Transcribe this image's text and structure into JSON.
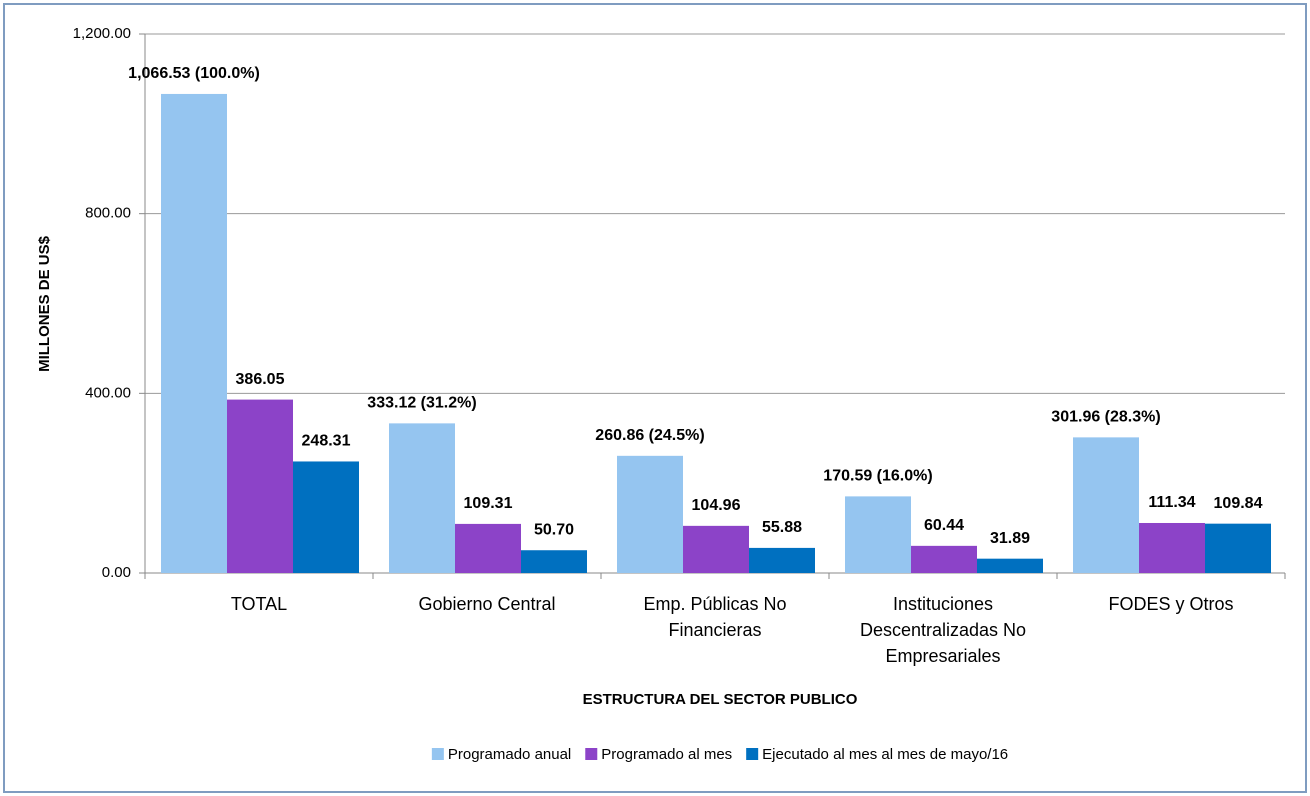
{
  "chart_data": {
    "type": "bar",
    "x_label": "ESTRUCTURA DEL SECTOR  PUBLICO",
    "y_label": "MILLONES DE  US$",
    "categories": [
      "TOTAL",
      "Gobierno Central",
      "Emp. Públicas No Financieras",
      "Instituciones Descentralizadas No Empresariales",
      "FODES y Otros"
    ],
    "series": [
      {
        "name": "Programado anual",
        "color": "#95c5f0",
        "values": [
          1066.53,
          333.12,
          260.86,
          170.59,
          301.96
        ],
        "value_labels": [
          "1,066.53 (100.0%)",
          "333.12 (31.2%)",
          "260.86 (24.5%)",
          "170.59 (16.0%)",
          "301.96 (28.3%)"
        ]
      },
      {
        "name": "Programado al mes",
        "color": "#8c43c8",
        "values": [
          386.05,
          109.31,
          104.96,
          60.44,
          111.34
        ],
        "value_labels": [
          "386.05",
          "109.31",
          "104.96",
          "60.44",
          "111.34"
        ]
      },
      {
        "name": "Ejecutado al mes al mes de mayo/16",
        "color": "#0070c0",
        "values": [
          248.31,
          50.7,
          55.88,
          31.89,
          109.84
        ],
        "value_labels": [
          "248.31",
          "50.70",
          "55.88",
          "31.89",
          "109.84"
        ]
      }
    ],
    "ylim": [
      0,
      1200
    ],
    "yticks": [
      {
        "value": 0,
        "label": "0.00"
      },
      {
        "value": 400,
        "label": "400.00"
      },
      {
        "value": 800,
        "label": "800.00"
      },
      {
        "value": 1200,
        "label": "1,200.00"
      }
    ],
    "grid": true,
    "legend": "bottom"
  }
}
